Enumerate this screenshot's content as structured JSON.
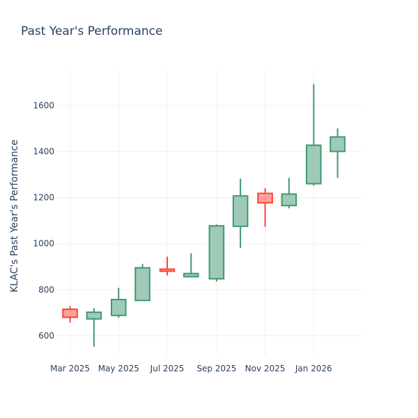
{
  "chart_data": {
    "type": "candlestick",
    "title": "Past Year's Performance",
    "ylabel": "KLAC's Past Year's Performance",
    "xlabel": "",
    "ylim": [
      515,
      1755
    ],
    "y_ticks": [
      600,
      800,
      1000,
      1200,
      1400,
      1600
    ],
    "x_ticks": [
      {
        "label": "Mar 2025",
        "date": "2025-03-01"
      },
      {
        "label": "May 2025",
        "date": "2025-05-01"
      },
      {
        "label": "Jul 2025",
        "date": "2025-07-01"
      },
      {
        "label": "Sep 2025",
        "date": "2025-09-01"
      },
      {
        "label": "Nov 2025",
        "date": "2025-11-01"
      },
      {
        "label": "Jan 2026",
        "date": "2026-01-01"
      }
    ],
    "xlim": [
      "2025-02-11",
      "2026-03-03"
    ],
    "grid": true,
    "colors": {
      "increasing": "#3d9970",
      "increasing_fill": "#9ecab7",
      "decreasing": "#ff4136",
      "decreasing_fill": "#ffa09a"
    },
    "candles": [
      {
        "date": "2025-03-01",
        "open": 715,
        "high": 728,
        "low": 657,
        "close": 680
      },
      {
        "date": "2025-03-31",
        "open": 673,
        "high": 720,
        "low": 552,
        "close": 702
      },
      {
        "date": "2025-05-01",
        "open": 688,
        "high": 808,
        "low": 678,
        "close": 757
      },
      {
        "date": "2025-05-31",
        "open": 753,
        "high": 912,
        "low": 753,
        "close": 895
      },
      {
        "date": "2025-07-01",
        "open": 889,
        "high": 943,
        "low": 862,
        "close": 880
      },
      {
        "date": "2025-07-31",
        "open": 856,
        "high": 958,
        "low": 856,
        "close": 870
      },
      {
        "date": "2025-09-01",
        "open": 847,
        "high": 1083,
        "low": 835,
        "close": 1077
      },
      {
        "date": "2025-10-01",
        "open": 1075,
        "high": 1282,
        "low": 981,
        "close": 1207
      },
      {
        "date": "2025-11-01",
        "open": 1218,
        "high": 1240,
        "low": 1073,
        "close": 1177
      },
      {
        "date": "2025-12-01",
        "open": 1165,
        "high": 1285,
        "low": 1153,
        "close": 1215
      },
      {
        "date": "2026-01-01",
        "open": 1260,
        "high": 1692,
        "low": 1252,
        "close": 1427
      },
      {
        "date": "2026-01-31",
        "open": 1400,
        "high": 1500,
        "low": 1285,
        "close": 1463
      }
    ]
  }
}
